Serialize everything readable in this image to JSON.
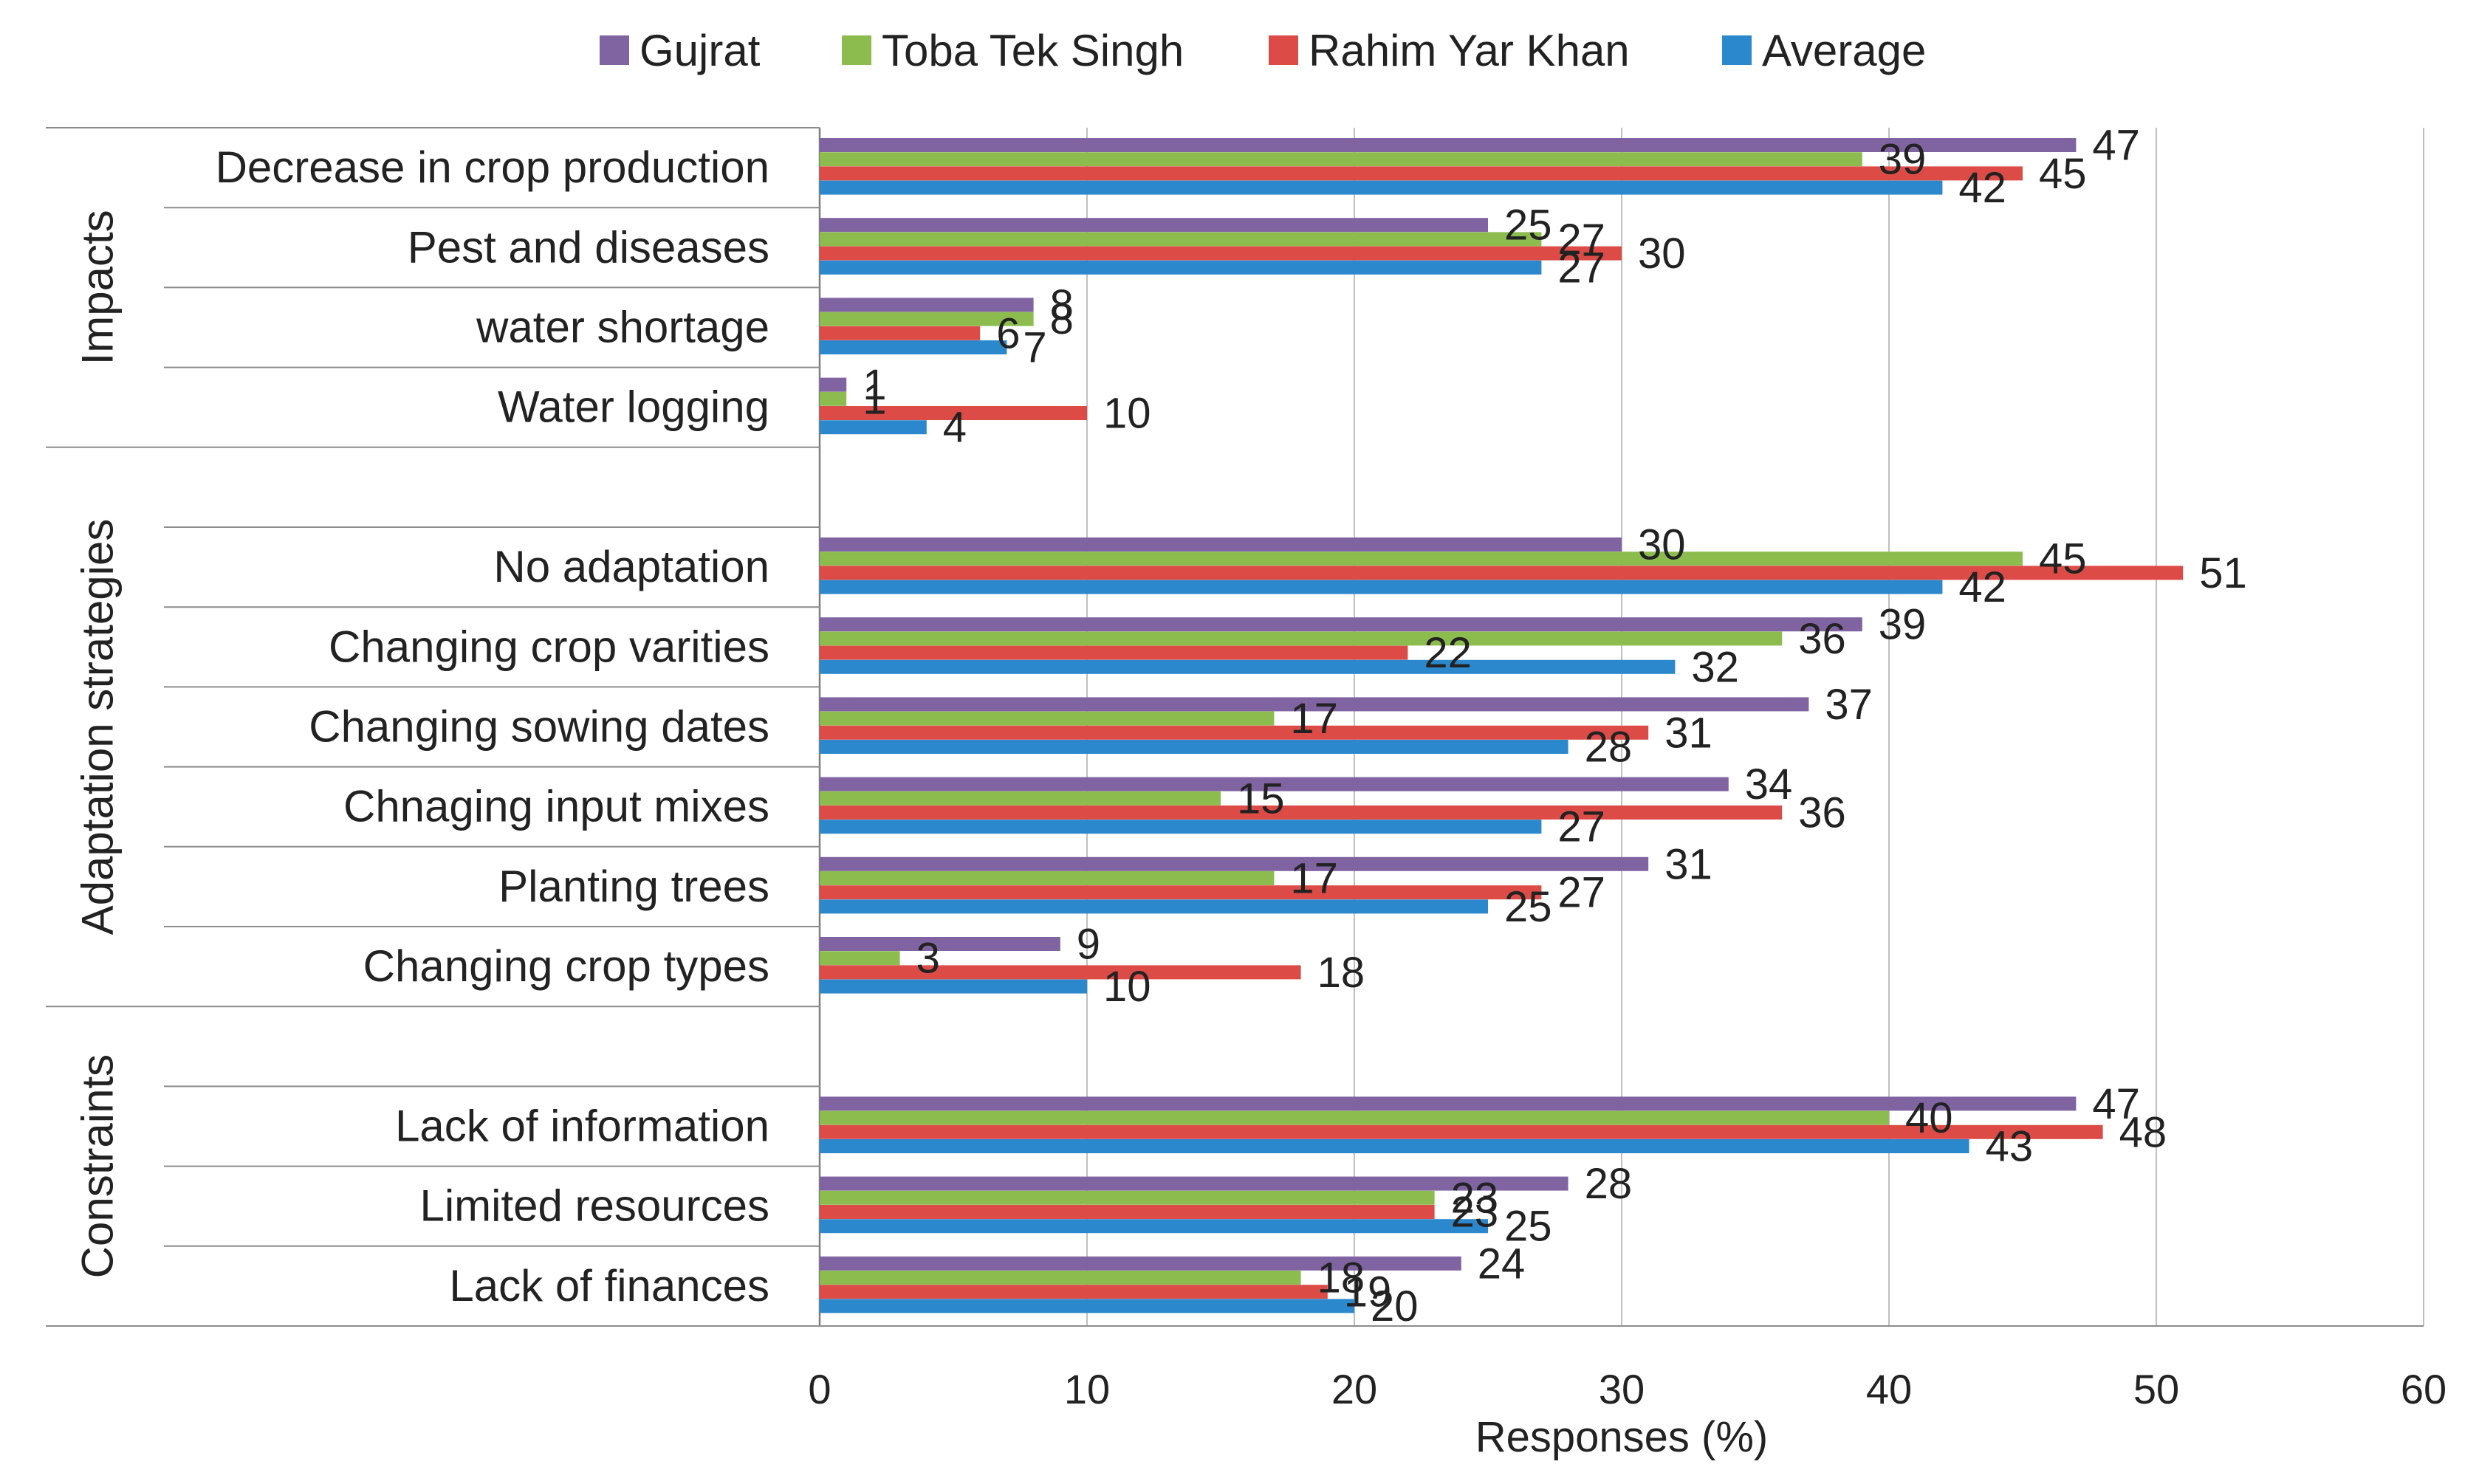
{
  "chart_data": {
    "type": "bar",
    "orientation": "horizontal",
    "title": "",
    "xlabel": "Responses (%)",
    "ylabel": "",
    "xlim": [
      0,
      60
    ],
    "xticks": [
      "0",
      "10",
      "20",
      "30",
      "40",
      "50",
      "60"
    ],
    "grid": true,
    "legend_position": "top",
    "series": [
      {
        "name": "Gujrat",
        "color": "#8064A2"
      },
      {
        "name": "Toba Tek Singh",
        "color": "#8CBC4E"
      },
      {
        "name": "Rahim Yar Khan",
        "color": "#DD4B47"
      },
      {
        "name": "Average",
        "color": "#2C88CC"
      }
    ],
    "groups": [
      {
        "name": "Impacts",
        "categories": [
          {
            "label": "Decrease in crop production",
            "values": [
              47,
              39,
              45,
              42
            ]
          },
          {
            "label": "Pest and diseases",
            "values": [
              25,
              27,
              30,
              27
            ]
          },
          {
            "label": "water shortage",
            "values": [
              8,
              8,
              6,
              7
            ]
          },
          {
            "label": "Water logging",
            "values": [
              1,
              1,
              10,
              4
            ]
          }
        ]
      },
      {
        "name": "Adaptation strategies",
        "categories": [
          {
            "label": "",
            "values": null
          },
          {
            "label": "No adaptation",
            "values": [
              30,
              45,
              51,
              42
            ]
          },
          {
            "label": "Changing crop varities",
            "values": [
              39,
              36,
              22,
              32
            ]
          },
          {
            "label": "Changing sowing dates",
            "values": [
              37,
              17,
              31,
              28
            ]
          },
          {
            "label": "Chnaging input mixes",
            "values": [
              34,
              15,
              36,
              27
            ]
          },
          {
            "label": "Planting trees",
            "values": [
              31,
              17,
              27,
              25
            ]
          },
          {
            "label": "Changing crop types",
            "values": [
              9,
              3,
              18,
              10
            ]
          }
        ]
      },
      {
        "name": "Constraints",
        "categories": [
          {
            "label": "",
            "values": null
          },
          {
            "label": "Lack of information",
            "values": [
              47,
              40,
              48,
              43
            ]
          },
          {
            "label": "Limited resources",
            "values": [
              28,
              23,
              23,
              25
            ]
          },
          {
            "label": "Lack of finances",
            "values": [
              24,
              18,
              19,
              20
            ]
          }
        ]
      }
    ]
  }
}
